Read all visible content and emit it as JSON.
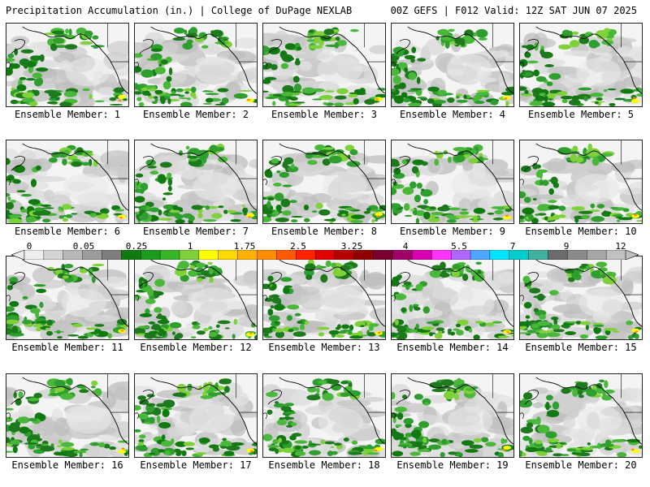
{
  "header": {
    "title": "Precipitation Accumulation (in.) | College of DuPage NEXLAB",
    "run_info": "00Z GEFS | F012 Valid: 12Z SAT JUN 07 2025"
  },
  "panels": [
    {
      "label": "Ensemble Member: 1"
    },
    {
      "label": "Ensemble Member: 2"
    },
    {
      "label": "Ensemble Member: 3"
    },
    {
      "label": "Ensemble Member: 4"
    },
    {
      "label": "Ensemble Member: 5"
    },
    {
      "label": "Ensemble Member: 6"
    },
    {
      "label": "Ensemble Member: 7"
    },
    {
      "label": "Ensemble Member: 8"
    },
    {
      "label": "Ensemble Member: 9"
    },
    {
      "label": "Ensemble Member: 10"
    },
    {
      "label": "Ensemble Member: 11"
    },
    {
      "label": "Ensemble Member: 12"
    },
    {
      "label": "Ensemble Member: 13"
    },
    {
      "label": "Ensemble Member: 14"
    },
    {
      "label": "Ensemble Member: 15"
    },
    {
      "label": "Ensemble Member: 16"
    },
    {
      "label": "Ensemble Member: 17"
    },
    {
      "label": "Ensemble Member: 18"
    },
    {
      "label": "Ensemble Member: 19"
    },
    {
      "label": "Ensemble Member: 20"
    }
  ],
  "colorbar": {
    "labels": [
      "0",
      "0.05",
      "0.25",
      "1",
      "1.75",
      "2.5",
      "3.25",
      "4",
      "5.5",
      "7",
      "9",
      "12"
    ],
    "colors": [
      "#eeeeee",
      "#d4d4d4",
      "#b8b8b8",
      "#9c9c9c",
      "#7e7e7e",
      "#107a10",
      "#1c9a1c",
      "#38b62a",
      "#7fd13a",
      "#ffff00",
      "#ffd700",
      "#ffb000",
      "#ff8c00",
      "#ff5a00",
      "#ff2200",
      "#e00000",
      "#b80000",
      "#900000",
      "#7a0030",
      "#a0006a",
      "#d800b0",
      "#ff33ff",
      "#b066ff",
      "#4da6ff",
      "#00e5ff",
      "#00cccc",
      "#40b0a0",
      "#6a6a6a",
      "#8a8a8a",
      "#a6a6a6",
      "#c0c0c0"
    ]
  }
}
